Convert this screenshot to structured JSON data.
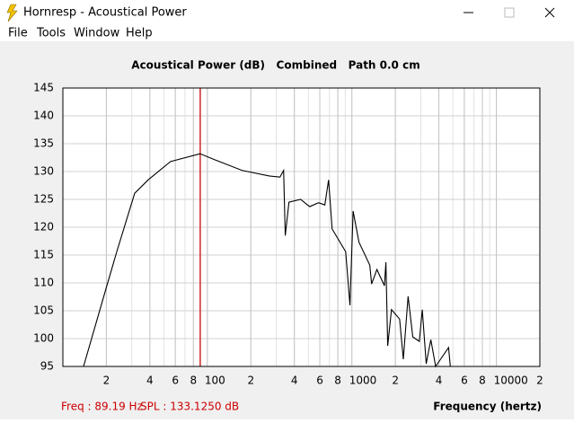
{
  "window": {
    "title": "Hornresp - Acoustical Power",
    "menu": [
      "File",
      "Tools",
      "Window",
      "Help"
    ]
  },
  "chart_data": {
    "type": "line",
    "title": "Acoustical Power (dB)   Combined   Path 0.0 cm",
    "x_label": "Frequency (hertz)",
    "log_x": true,
    "grid": true,
    "color": "#000000",
    "x": [
      13.9,
      20,
      23.6,
      31.4,
      38.9,
      55.6,
      89,
      113,
      174,
      268,
      318,
      337,
      346,
      367,
      442,
      510,
      588,
      650,
      690,
      730,
      906,
      970,
      1020,
      1120,
      1330,
      1370,
      1490,
      1680,
      1720,
      1770,
      1880,
      2140,
      2270,
      2450,
      2640,
      2930,
      3070,
      3270,
      3520,
      3800,
      4670,
      4800
    ],
    "values": [
      95,
      109.2,
      115.6,
      126.1,
      128.5,
      131.8,
      133.2,
      132.1,
      130.2,
      129.2,
      129,
      130.2,
      118.5,
      124.5,
      125,
      123.7,
      124.4,
      124,
      128.5,
      119.7,
      115.6,
      106,
      122.9,
      117.3,
      113.2,
      109.8,
      112.4,
      109.5,
      113.7,
      98.7,
      105.2,
      103.5,
      96.3,
      107.6,
      100.3,
      99.5,
      105.2,
      95.5,
      99.8,
      95,
      98.4,
      95
    ],
    "xlim": [
      10,
      20000
    ],
    "ylim": [
      95,
      145
    ],
    "xticks": [
      {
        "value": 20,
        "label": "2"
      },
      {
        "value": 40,
        "label": "4"
      },
      {
        "value": 60,
        "label": "6"
      },
      {
        "value": 80,
        "label": "8"
      },
      100,
      {
        "value": 200,
        "label": "2"
      },
      {
        "value": 400,
        "label": "4"
      },
      {
        "value": 600,
        "label": "6"
      },
      {
        "value": 800,
        "label": "8"
      },
      1000,
      {
        "value": 2000,
        "label": "2"
      },
      {
        "value": 4000,
        "label": "4"
      },
      {
        "value": 6000,
        "label": "6"
      },
      {
        "value": 8000,
        "label": "8"
      },
      10000,
      {
        "value": 20000,
        "label": "2"
      }
    ],
    "yticks": [
      95,
      100,
      105,
      110,
      115,
      120,
      125,
      130,
      135,
      140,
      145
    ],
    "cursor_x": 89.19,
    "cursor_color": "#cc0000"
  },
  "status": {
    "freq": "Freq : 89.19 Hz",
    "spl": "SPL : 133.1250 dB"
  }
}
